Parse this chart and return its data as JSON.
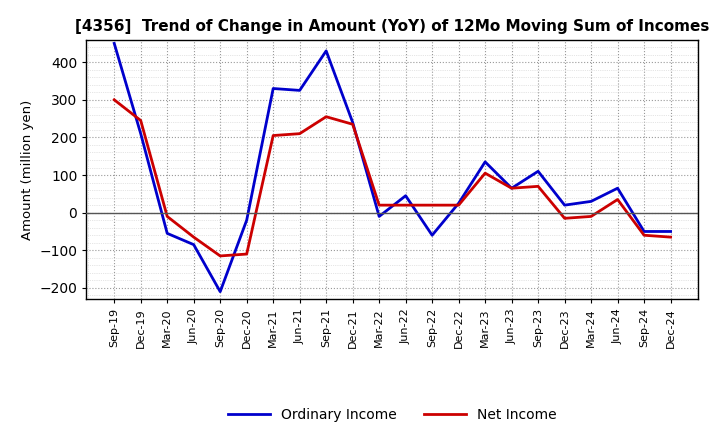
{
  "title": "[4356]  Trend of Change in Amount (YoY) of 12Mo Moving Sum of Incomes",
  "ylabel": "Amount (million yen)",
  "x_labels": [
    "Sep-19",
    "Dec-19",
    "Mar-20",
    "Jun-20",
    "Sep-20",
    "Dec-20",
    "Mar-21",
    "Jun-21",
    "Sep-21",
    "Dec-21",
    "Mar-22",
    "Jun-22",
    "Sep-22",
    "Dec-22",
    "Mar-23",
    "Jun-23",
    "Sep-23",
    "Dec-23",
    "Mar-24",
    "Jun-24",
    "Sep-24",
    "Dec-24"
  ],
  "ordinary_income": [
    450,
    210,
    -55,
    -85,
    -210,
    -20,
    330,
    325,
    430,
    240,
    -10,
    45,
    -60,
    25,
    135,
    65,
    110,
    20,
    30,
    65,
    -50,
    -50
  ],
  "net_income": [
    300,
    245,
    -10,
    -65,
    -115,
    -110,
    205,
    210,
    255,
    235,
    20,
    20,
    20,
    20,
    105,
    65,
    70,
    -15,
    -10,
    35,
    -60,
    -65
  ],
  "ordinary_color": "#0000cc",
  "net_color": "#cc0000",
  "ylim": [
    -230,
    460
  ],
  "yticks": [
    -200,
    -100,
    0,
    100,
    200,
    300,
    400
  ],
  "background_color": "#ffffff",
  "major_grid_color": "#999999",
  "minor_grid_color": "#cccccc",
  "line_width": 2.0,
  "legend_ordinary": "Ordinary Income",
  "legend_net": "Net Income"
}
